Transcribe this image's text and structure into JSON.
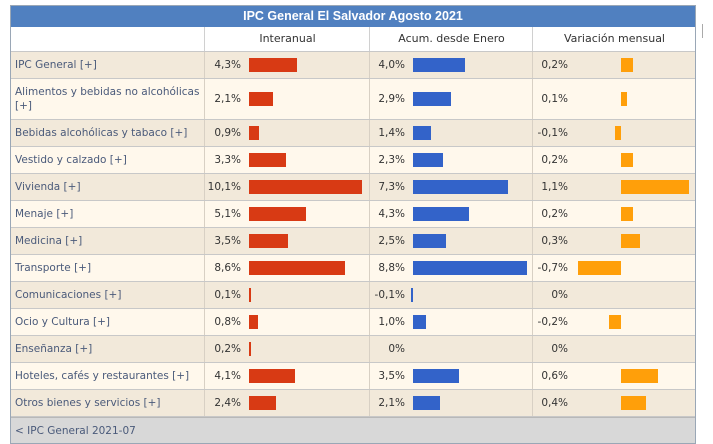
{
  "title": "IPC General El Salvador Agosto 2021",
  "headers": [
    "Interanual",
    "Acum. desde Enero",
    "Variación mensual"
  ],
  "colors": {
    "interanual": "#d83a14",
    "acumulado": "#3363c9",
    "mensual": "#ff9f0a",
    "header": "#5080c0"
  },
  "chart_data": {
    "type": "bar",
    "categories": [
      "IPC General [+]",
      "Alimentos y bebidas no alcohólicas [+]",
      "Bebidas alcohólicas y tabaco [+]",
      "Vestido y calzado [+]",
      "Vivienda [+]",
      "Menaje [+]",
      "Medicina [+]",
      "Transporte [+]",
      "Comunicaciones [+]",
      "Ocio y Cultura [+]",
      "Enseñanza [+]",
      "Hoteles, cafés y restaurantes [+]",
      "Otros bienes y servicios [+]"
    ],
    "series": [
      {
        "name": "Interanual",
        "values": [
          4.3,
          2.1,
          0.9,
          3.3,
          10.1,
          5.1,
          3.5,
          8.6,
          0.1,
          0.8,
          0.2,
          4.1,
          2.4
        ]
      },
      {
        "name": "Acum. desde Enero",
        "values": [
          4.0,
          2.9,
          1.4,
          2.3,
          7.3,
          4.3,
          2.5,
          8.8,
          -0.1,
          1.0,
          0,
          3.5,
          2.1
        ]
      },
      {
        "name": "Variación mensual",
        "values": [
          0.2,
          0.1,
          -0.1,
          0.2,
          1.1,
          0.2,
          0.3,
          -0.7,
          0,
          -0.2,
          0,
          0.6,
          0.4
        ]
      }
    ]
  },
  "rows": [
    {
      "label": "IPC General [+]",
      "inter": "4,3%",
      "acum": "4,0%",
      "mens": "0,2%"
    },
    {
      "label": "Alimentos y bebidas no alcohólicas [+]",
      "inter": "2,1%",
      "acum": "2,9%",
      "mens": "0,1%"
    },
    {
      "label": "Bebidas alcohólicas y tabaco [+]",
      "inter": "0,9%",
      "acum": "1,4%",
      "mens": "-0,1%"
    },
    {
      "label": "Vestido y calzado [+]",
      "inter": "3,3%",
      "acum": "2,3%",
      "mens": "0,2%"
    },
    {
      "label": "Vivienda [+]",
      "inter": "10,1%",
      "acum": "7,3%",
      "mens": "1,1%"
    },
    {
      "label": "Menaje [+]",
      "inter": "5,1%",
      "acum": "4,3%",
      "mens": "0,2%"
    },
    {
      "label": "Medicina [+]",
      "inter": "3,5%",
      "acum": "2,5%",
      "mens": "0,3%"
    },
    {
      "label": "Transporte [+]",
      "inter": "8,6%",
      "acum": "8,8%",
      "mens": "-0,7%"
    },
    {
      "label": "Comunicaciones [+]",
      "inter": "0,1%",
      "acum": "-0,1%",
      "mens": "0%"
    },
    {
      "label": "Ocio y Cultura [+]",
      "inter": "0,8%",
      "acum": "1,0%",
      "mens": "-0,2%"
    },
    {
      "label": "Enseñanza [+]",
      "inter": "0,2%",
      "acum": "0%",
      "mens": "0%"
    },
    {
      "label": "Hoteles, cafés y restaurantes [+]",
      "inter": "4,1%",
      "acum": "3,5%",
      "mens": "0,6%"
    },
    {
      "label": "Otros bienes y servicios [+]",
      "inter": "2,4%",
      "acum": "2,1%",
      "mens": "0,4%"
    }
  ],
  "footer": "< IPC General 2021-07"
}
